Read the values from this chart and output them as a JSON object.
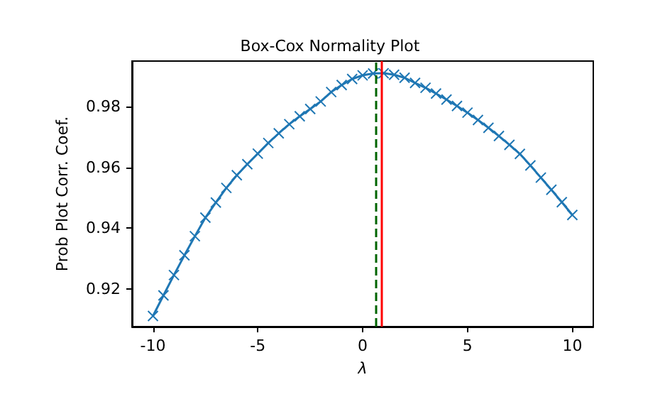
{
  "chart_data": {
    "type": "line",
    "title": "Box-Cox Normality Plot",
    "xlabel": "λ",
    "ylabel": "Prob Plot Corr. Coef.",
    "x": [
      -10,
      -9.5,
      -9,
      -8.5,
      -8,
      -7.5,
      -7,
      -6.5,
      -6,
      -5.5,
      -5,
      -4.5,
      -4,
      -3.5,
      -3,
      -2.5,
      -2,
      -1.5,
      -1,
      -0.5,
      0,
      0.5,
      1,
      1.5,
      2,
      2.5,
      3,
      3.5,
      4,
      4.5,
      5,
      5.5,
      6,
      6.5,
      7,
      7.5,
      8,
      8.5,
      9,
      9.5,
      10
    ],
    "series": [
      {
        "color": "#1f77b4",
        "values": [
          0.911,
          0.9178,
          0.9245,
          0.931,
          0.9373,
          0.9434,
          0.9484,
          0.9532,
          0.9574,
          0.961,
          0.9645,
          0.968,
          0.9712,
          0.9742,
          0.9768,
          0.9792,
          0.9817,
          0.9848,
          0.9871,
          0.9891,
          0.9903,
          0.9909,
          0.991,
          0.9905,
          0.9895,
          0.9878,
          0.9862,
          0.9843,
          0.9823,
          0.9802,
          0.978,
          0.9756,
          0.973,
          0.9703,
          0.9674,
          0.9644,
          0.9606,
          0.9566,
          0.9526,
          0.9485,
          0.9443
        ]
      }
    ],
    "xlim": [
      -11,
      11
    ],
    "xticks": [
      -10,
      -5,
      0,
      5,
      10
    ],
    "ylim": [
      0.9075,
      0.995
    ],
    "yticks": [
      0.92,
      0.94,
      0.96,
      0.98
    ],
    "ref_lines": [
      {
        "axis": "x",
        "value": 0.62,
        "color": "#006400",
        "line_style": "dashed"
      },
      {
        "axis": "x",
        "value": 0.91,
        "color": "#ff0000",
        "line_style": "solid"
      }
    ],
    "marker": "cross",
    "line_style": "solid",
    "grid": false
  }
}
